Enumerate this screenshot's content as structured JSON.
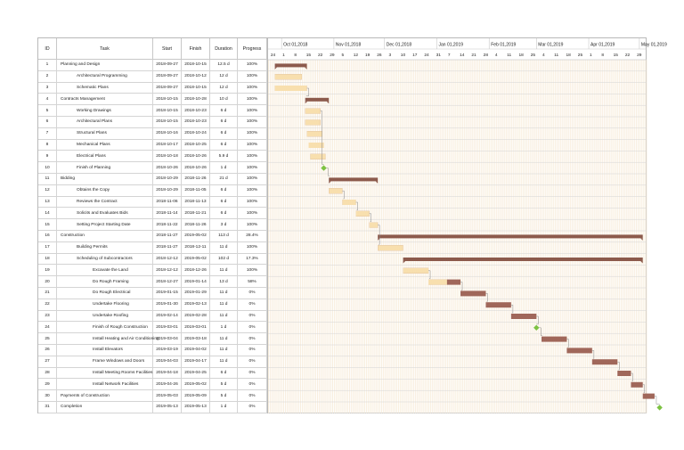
{
  "columns": {
    "id": "ID",
    "task": "Task",
    "start": "Start",
    "finish": "Finish",
    "duration": "Duration",
    "progress": "Progress"
  },
  "months": [
    "Oct 01,2018",
    "Nov 01,2018",
    "Dec 01,2018",
    "Jan 01,2019",
    "Feb 01,2019",
    "Mar 01,2019",
    "Apr 01,2019",
    "May 01,2019"
  ],
  "day_ticks": [
    "24",
    "1",
    "8",
    "15",
    "22",
    "29",
    "5",
    "12",
    "19",
    "26",
    "3",
    "10",
    "17",
    "24",
    "31",
    "7",
    "14",
    "21",
    "28",
    "4",
    "11",
    "18",
    "25",
    "4",
    "11",
    "18",
    "25",
    "1",
    "8",
    "15",
    "22",
    "29",
    "6",
    "13"
  ],
  "colors": {
    "bar_done": "#f8dfae",
    "bar_todo": "#a0675a",
    "summary": "#8c5a4c",
    "milestone": "#7cc242",
    "stripe": "#f8eddc",
    "grid": "#d4d4d4",
    "link": "#8a8a8a"
  },
  "tasks": [
    {
      "id": "1",
      "name": "Planning and Design",
      "start": "2018-09-27",
      "finish": "2018-10-15",
      "duration": "12.5 d",
      "progress": "100%",
      "level": 0,
      "type": "summary"
    },
    {
      "id": "2",
      "name": "Architectural Programming",
      "start": "2018-09-27",
      "finish": "2018-10-12",
      "duration": "12 d",
      "progress": "100%",
      "level": 1,
      "type": "task"
    },
    {
      "id": "3",
      "name": "Schematic Plans",
      "start": "2018-09-27",
      "finish": "2018-10-15",
      "duration": "12 d",
      "progress": "100%",
      "level": 1,
      "type": "task"
    },
    {
      "id": "4",
      "name": "Contracts Management",
      "start": "2018-10-15",
      "finish": "2018-10-28",
      "duration": "10 d",
      "progress": "100%",
      "level": 0,
      "type": "summary"
    },
    {
      "id": "5",
      "name": "Working Drawings",
      "start": "2018-10-15",
      "finish": "2018-10-23",
      "duration": "6 d",
      "progress": "100%",
      "level": 1,
      "type": "task"
    },
    {
      "id": "6",
      "name": "Architectural Plans",
      "start": "2018-10-15",
      "finish": "2018-10-23",
      "duration": "6 d",
      "progress": "100%",
      "level": 1,
      "type": "task"
    },
    {
      "id": "7",
      "name": "Structural Plans",
      "start": "2018-10-16",
      "finish": "2018-10-24",
      "duration": "6 d",
      "progress": "100%",
      "level": 1,
      "type": "task"
    },
    {
      "id": "8",
      "name": "Mechanical Plans",
      "start": "2018-10-17",
      "finish": "2018-10-25",
      "duration": "6 d",
      "progress": "100%",
      "level": 1,
      "type": "task"
    },
    {
      "id": "9",
      "name": "Electrical Plans",
      "start": "2018-10-18",
      "finish": "2018-10-26",
      "duration": "5.9 d",
      "progress": "100%",
      "level": 1,
      "type": "task"
    },
    {
      "id": "10",
      "name": "Finish of Planning",
      "start": "2018-10-26",
      "finish": "2018-10-26",
      "duration": "1 d",
      "progress": "100%",
      "level": 1,
      "type": "milestone"
    },
    {
      "id": "11",
      "name": "Bidding",
      "start": "2018-10-29",
      "finish": "2018-11-26",
      "duration": "21 d",
      "progress": "100%",
      "level": 0,
      "type": "summary"
    },
    {
      "id": "12",
      "name": "Obtains the Copy",
      "start": "2018-10-29",
      "finish": "2018-11-05",
      "duration": "6 d",
      "progress": "100%",
      "level": 1,
      "type": "task"
    },
    {
      "id": "13",
      "name": "Reviews the Contract",
      "start": "2018-11-06",
      "finish": "2018-11-13",
      "duration": "6 d",
      "progress": "100%",
      "level": 1,
      "type": "task"
    },
    {
      "id": "14",
      "name": "Solicits and Evaluates Bids",
      "start": "2018-11-14",
      "finish": "2018-11-21",
      "duration": "6 d",
      "progress": "100%",
      "level": 1,
      "type": "task"
    },
    {
      "id": "15",
      "name": "Setting Project Starting Date",
      "start": "2018-11-22",
      "finish": "2018-11-26",
      "duration": "3 d",
      "progress": "100%",
      "level": 1,
      "type": "task"
    },
    {
      "id": "16",
      "name": "Construction",
      "start": "2018-11-27",
      "finish": "2019-05-02",
      "duration": "113 d",
      "progress": "28.4%",
      "level": 0,
      "type": "summary"
    },
    {
      "id": "17",
      "name": "Building Permits",
      "start": "2018-11-27",
      "finish": "2018-12-11",
      "duration": "11 d",
      "progress": "100%",
      "level": 1,
      "type": "task"
    },
    {
      "id": "18",
      "name": "Scheduling of Subcontractors",
      "start": "2018-12-12",
      "finish": "2019-05-02",
      "duration": "102 d",
      "progress": "17.3%",
      "level": 1,
      "type": "summary"
    },
    {
      "id": "19",
      "name": "Excavate the Land",
      "start": "2018-12-12",
      "finish": "2018-12-26",
      "duration": "11 d",
      "progress": "100%",
      "level": 2,
      "type": "task"
    },
    {
      "id": "20",
      "name": "Do Rough Framing",
      "start": "2018-12-27",
      "finish": "2019-01-14",
      "duration": "13 d",
      "progress": "58%",
      "level": 2,
      "type": "task"
    },
    {
      "id": "21",
      "name": "Do Rough Electrical",
      "start": "2019-01-15",
      "finish": "2019-01-29",
      "duration": "11 d",
      "progress": "0%",
      "level": 2,
      "type": "task"
    },
    {
      "id": "22",
      "name": "Undertake Flooring",
      "start": "2019-01-30",
      "finish": "2019-02-13",
      "duration": "11 d",
      "progress": "0%",
      "level": 2,
      "type": "task"
    },
    {
      "id": "23",
      "name": "Undertake Roofing",
      "start": "2019-02-14",
      "finish": "2019-02-28",
      "duration": "11 d",
      "progress": "0%",
      "level": 2,
      "type": "task"
    },
    {
      "id": "24",
      "name": "Finish of Rough Construction",
      "start": "2019-03-01",
      "finish": "2019-03-01",
      "duration": "1 d",
      "progress": "0%",
      "level": 2,
      "type": "milestone"
    },
    {
      "id": "25",
      "name": "Install Heating and Air Conditioning",
      "start": "2019-03-04",
      "finish": "2019-03-18",
      "duration": "11 d",
      "progress": "0%",
      "level": 2,
      "type": "task"
    },
    {
      "id": "26",
      "name": "Install Elevators",
      "start": "2019-03-19",
      "finish": "2019-04-02",
      "duration": "11 d",
      "progress": "0%",
      "level": 2,
      "type": "task"
    },
    {
      "id": "27",
      "name": "Frame Windows and Doors",
      "start": "2019-04-03",
      "finish": "2019-04-17",
      "duration": "11 d",
      "progress": "0%",
      "level": 2,
      "type": "task"
    },
    {
      "id": "28",
      "name": "Install Meeting Rooms Facilities",
      "start": "2019-04-18",
      "finish": "2019-04-25",
      "duration": "6 d",
      "progress": "0%",
      "level": 2,
      "type": "task"
    },
    {
      "id": "29",
      "name": "Install Network Facilities",
      "start": "2019-04-26",
      "finish": "2019-05-02",
      "duration": "5 d",
      "progress": "0%",
      "level": 2,
      "type": "task"
    },
    {
      "id": "30",
      "name": "Payments of Construction",
      "start": "2019-05-03",
      "finish": "2019-05-09",
      "duration": "5 d",
      "progress": "0%",
      "level": 0,
      "type": "task"
    },
    {
      "id": "31",
      "name": "Completion",
      "start": "2019-05-13",
      "finish": "2019-05-13",
      "duration": "1 d",
      "progress": "0%",
      "level": 0,
      "type": "milestone"
    }
  ]
}
